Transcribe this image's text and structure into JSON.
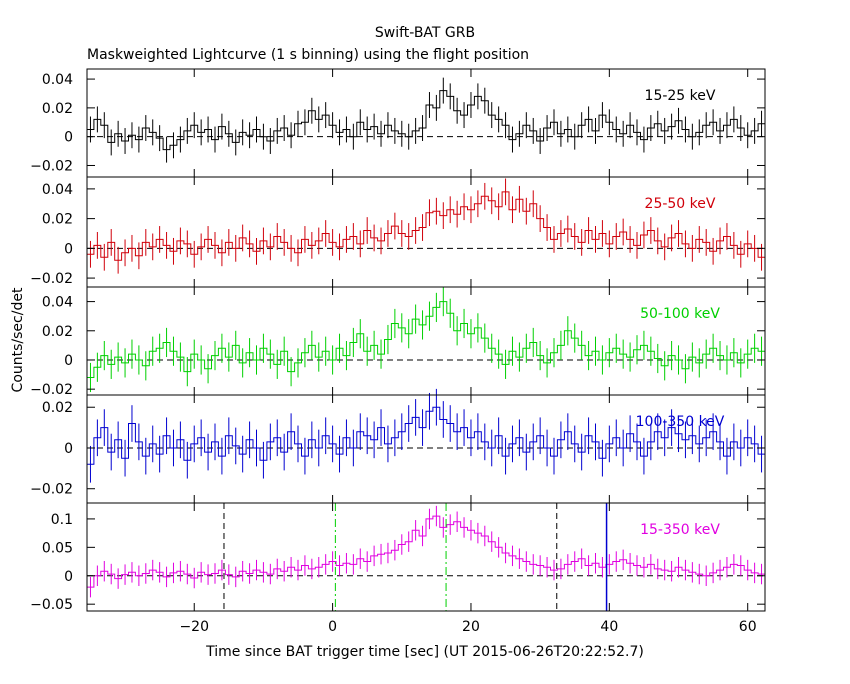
{
  "title": "Swift-BAT GRB",
  "subtitle": "Maskweighted Lightcurve (1 s binning) using the flight position",
  "xlabel": "Time since BAT trigger time [sec] (UT 2015-06-26T20:22:52.7)",
  "ylabel": "Counts/sec/det",
  "chart_data": [
    {
      "type": "line",
      "band": "15-25 keV",
      "color": "#000000",
      "xlim": [
        -35.5,
        62.5
      ],
      "ylim": [
        -0.028,
        0.047
      ],
      "yticks": [
        -0.02,
        0,
        0.02,
        0.04
      ],
      "ytick_labels": [
        "−0.02",
        "0",
        "0.02",
        "0.04"
      ],
      "x_start": -35.5,
      "bin_width": 1,
      "values": [
        0.005,
        0.012,
        0.008,
        -0.004,
        0.002,
        -0.003,
        0.001,
        -0.002,
        0.006,
        0.003,
        -0.001,
        -0.009,
        -0.006,
        -0.002,
        0.004,
        0.008,
        0.003,
        0.005,
        -0.002,
        0.007,
        0.002,
        -0.004,
        0.003,
        0.001,
        0.005,
        0.0,
        -0.003,
        0.004,
        0.006,
        0.001,
        0.009,
        0.01,
        0.018,
        0.012,
        0.015,
        0.008,
        0.003,
        0.005,
        0.0,
        0.01,
        0.005,
        0.007,
        0.002,
        0.008,
        0.004,
        0.002,
        0.0,
        0.004,
        0.006,
        0.022,
        0.02,
        0.032,
        0.028,
        0.018,
        0.015,
        0.022,
        0.028,
        0.025,
        0.015,
        0.012,
        0.008,
        -0.002,
        0.002,
        0.008,
        0.004,
        -0.003,
        0.006,
        0.01,
        0.002,
        0.005,
        0.0,
        0.008,
        0.012,
        0.004,
        0.015,
        0.01,
        0.005,
        0.002,
        0.008,
        0.003,
        -0.002,
        0.006,
        0.009,
        0.004,
        0.007,
        0.011,
        0.005,
        0.0,
        0.003,
        0.008,
        0.01,
        0.004,
        0.008,
        0.012,
        0.006,
        0.001,
        0.004,
        0.009
      ],
      "error": 0.009
    },
    {
      "type": "line",
      "band": "25-50 keV",
      "color": "#d0000a",
      "xlim": [
        -35.5,
        62.5
      ],
      "ylim": [
        -0.026,
        0.048
      ],
      "yticks": [
        -0.02,
        0,
        0.02,
        0.04
      ],
      "ytick_labels": [
        "−0.02",
        "0",
        "0.02",
        "0.04"
      ],
      "x_start": -35.5,
      "bin_width": 1,
      "values": [
        -0.004,
        0.002,
        -0.006,
        0.004,
        -0.008,
        -0.003,
        0.0,
        -0.005,
        0.004,
        0.001,
        0.006,
        0.002,
        -0.002,
        0.005,
        0.003,
        -0.004,
        0.001,
        0.006,
        0.002,
        -0.003,
        0.004,
        0.0,
        0.007,
        0.003,
        -0.002,
        0.005,
        0.001,
        0.008,
        0.004,
        0.0,
        -0.003,
        0.006,
        0.002,
        0.005,
        0.01,
        0.004,
        0.001,
        0.006,
        0.008,
        0.003,
        0.012,
        0.007,
        0.005,
        0.01,
        0.015,
        0.01,
        0.008,
        0.012,
        0.014,
        0.024,
        0.025,
        0.022,
        0.026,
        0.023,
        0.028,
        0.026,
        0.03,
        0.035,
        0.032,
        0.028,
        0.038,
        0.026,
        0.033,
        0.025,
        0.03,
        0.02,
        0.014,
        0.006,
        0.01,
        0.013,
        0.008,
        0.004,
        0.012,
        0.006,
        0.01,
        0.003,
        0.008,
        0.011,
        0.006,
        0.002,
        0.009,
        0.012,
        0.005,
        0.001,
        0.007,
        0.01,
        0.003,
        0.0,
        0.006,
        0.004,
        -0.002,
        0.005,
        0.008,
        0.002,
        -0.004,
        0.003,
        0.0,
        -0.006
      ],
      "error": 0.009
    },
    {
      "type": "line",
      "band": "50-100 keV",
      "color": "#00d000",
      "xlim": [
        -35.5,
        62.5
      ],
      "ylim": [
        -0.024,
        0.05
      ],
      "yticks": [
        -0.02,
        0,
        0.02,
        0.04
      ],
      "ytick_labels": [
        "−0.02",
        "0",
        "0.02",
        "0.04"
      ],
      "x_start": -35.5,
      "bin_width": 1,
      "values": [
        -0.012,
        -0.005,
        0.003,
        -0.003,
        0.002,
        -0.002,
        0.004,
        0.0,
        -0.004,
        0.006,
        0.008,
        0.012,
        0.006,
        0.002,
        -0.008,
        0.004,
        0.0,
        -0.006,
        0.003,
        0.008,
        0.002,
        0.01,
        -0.002,
        0.005,
        0.0,
        0.008,
        0.004,
        -0.003,
        0.006,
        -0.008,
        -0.002,
        0.005,
        0.01,
        0.002,
        0.006,
        0.0,
        0.008,
        0.003,
        0.012,
        0.018,
        0.006,
        0.01,
        0.004,
        0.014,
        0.025,
        0.022,
        0.018,
        0.028,
        0.024,
        0.03,
        0.036,
        0.04,
        0.032,
        0.02,
        0.025,
        0.018,
        0.022,
        0.015,
        0.008,
        0.004,
        -0.003,
        0.006,
        0.002,
        0.008,
        0.012,
        0.003,
        -0.002,
        0.005,
        0.01,
        0.02,
        0.015,
        0.01,
        0.003,
        0.006,
        0.0,
        0.005,
        0.008,
        0.004,
        0.002,
        0.007,
        0.01,
        0.006,
        0.001,
        -0.004,
        0.003,
        0.0,
        -0.006,
        0.002,
        -0.002,
        0.004,
        0.008,
        0.003,
        0.0,
        0.005,
        -0.002,
        0.004,
        0.008,
        0.006
      ],
      "error": 0.01
    },
    {
      "type": "line",
      "band": "100-350 keV",
      "color": "#0000d0",
      "xlim": [
        -35.5,
        62.5
      ],
      "ylim": [
        -0.027,
        0.026
      ],
      "yticks": [
        -0.02,
        0,
        0.02
      ],
      "ytick_labels": [
        "−0.02",
        "0",
        "0.02"
      ],
      "x_start": -35.5,
      "bin_width": 1,
      "values": [
        -0.008,
        0.005,
        0.01,
        -0.002,
        0.004,
        -0.005,
        0.012,
        0.003,
        -0.004,
        0.002,
        -0.003,
        0.006,
        0.0,
        0.004,
        -0.006,
        0.002,
        0.005,
        -0.002,
        0.003,
        -0.004,
        0.006,
        0.001,
        -0.003,
        0.004,
        0.0,
        -0.006,
        0.003,
        0.005,
        -0.002,
        0.008,
        0.002,
        -0.004,
        0.004,
        0.0,
        0.006,
        0.002,
        -0.003,
        0.005,
        0.0,
        0.008,
        0.006,
        0.004,
        0.01,
        0.002,
        0.005,
        0.008,
        0.012,
        0.015,
        0.01,
        0.018,
        0.02,
        0.014,
        0.012,
        0.008,
        0.01,
        0.005,
        0.008,
        0.003,
        0.0,
        0.006,
        -0.004,
        0.002,
        0.005,
        -0.002,
        0.003,
        0.006,
        0.0,
        -0.004,
        0.004,
        0.008,
        0.002,
        -0.002,
        0.006,
        0.003,
        -0.005,
        0.002,
        0.005,
        0.0,
        0.007,
        0.003,
        -0.004,
        0.003,
        0.008,
        0.005,
        0.01,
        0.007,
        0.004,
        0.006,
        0.002,
        0.005,
        0.008,
        0.003,
        -0.004,
        0.003,
        0.0,
        0.005,
        0.002,
        -0.003
      ],
      "error": 0.009
    },
    {
      "type": "line",
      "band": "15-350 keV",
      "color": "#e000e0",
      "xlim": [
        -35.5,
        62.5
      ],
      "ylim": [
        -0.062,
        0.128
      ],
      "yticks": [
        -0.05,
        0,
        0.05,
        0.1
      ],
      "ytick_labels": [
        "−0.05",
        "0",
        "0.05",
        "0.1"
      ],
      "x_start": -35.5,
      "bin_width": 1,
      "values": [
        -0.02,
        0.0,
        0.008,
        0.003,
        -0.005,
        0.002,
        0.006,
        0.0,
        0.004,
        0.01,
        0.006,
        -0.002,
        0.005,
        0.008,
        0.003,
        -0.004,
        0.006,
        0.002,
        0.004,
        0.01,
        0.002,
        -0.002,
        0.008,
        0.004,
        0.01,
        0.006,
        0.003,
        0.012,
        0.008,
        0.015,
        0.01,
        0.018,
        0.012,
        0.015,
        0.02,
        0.025,
        0.018,
        0.022,
        0.02,
        0.03,
        0.025,
        0.035,
        0.038,
        0.04,
        0.045,
        0.055,
        0.06,
        0.08,
        0.07,
        0.1,
        0.105,
        0.085,
        0.09,
        0.095,
        0.085,
        0.08,
        0.075,
        0.07,
        0.06,
        0.05,
        0.04,
        0.035,
        0.03,
        0.025,
        0.02,
        0.018,
        0.015,
        0.01,
        0.012,
        0.02,
        0.025,
        0.03,
        0.018,
        0.022,
        0.015,
        0.02,
        0.025,
        0.028,
        0.022,
        0.018,
        0.015,
        0.02,
        0.012,
        0.01,
        0.008,
        0.015,
        0.01,
        0.006,
        0.003,
        0.0,
        0.005,
        0.01,
        0.015,
        0.02,
        0.018,
        0.01,
        0.005,
        0.003
      ],
      "error": 0.018,
      "markers": [
        {
          "x": -15.7,
          "style": "dashed",
          "color": "#000000"
        },
        {
          "x": 0.4,
          "style": "dashdot",
          "color": "#00d000"
        },
        {
          "x": 16.4,
          "style": "dashdot",
          "color": "#00d000"
        },
        {
          "x": 32.4,
          "style": "dashed",
          "color": "#000000"
        },
        {
          "x": 39.6,
          "style": "solid",
          "color": "#0000d0"
        }
      ]
    }
  ],
  "xaxis": {
    "ticks": [
      -20,
      0,
      20,
      40,
      60
    ],
    "tick_labels": [
      "−20",
      "0",
      "20",
      "40",
      "60"
    ]
  }
}
